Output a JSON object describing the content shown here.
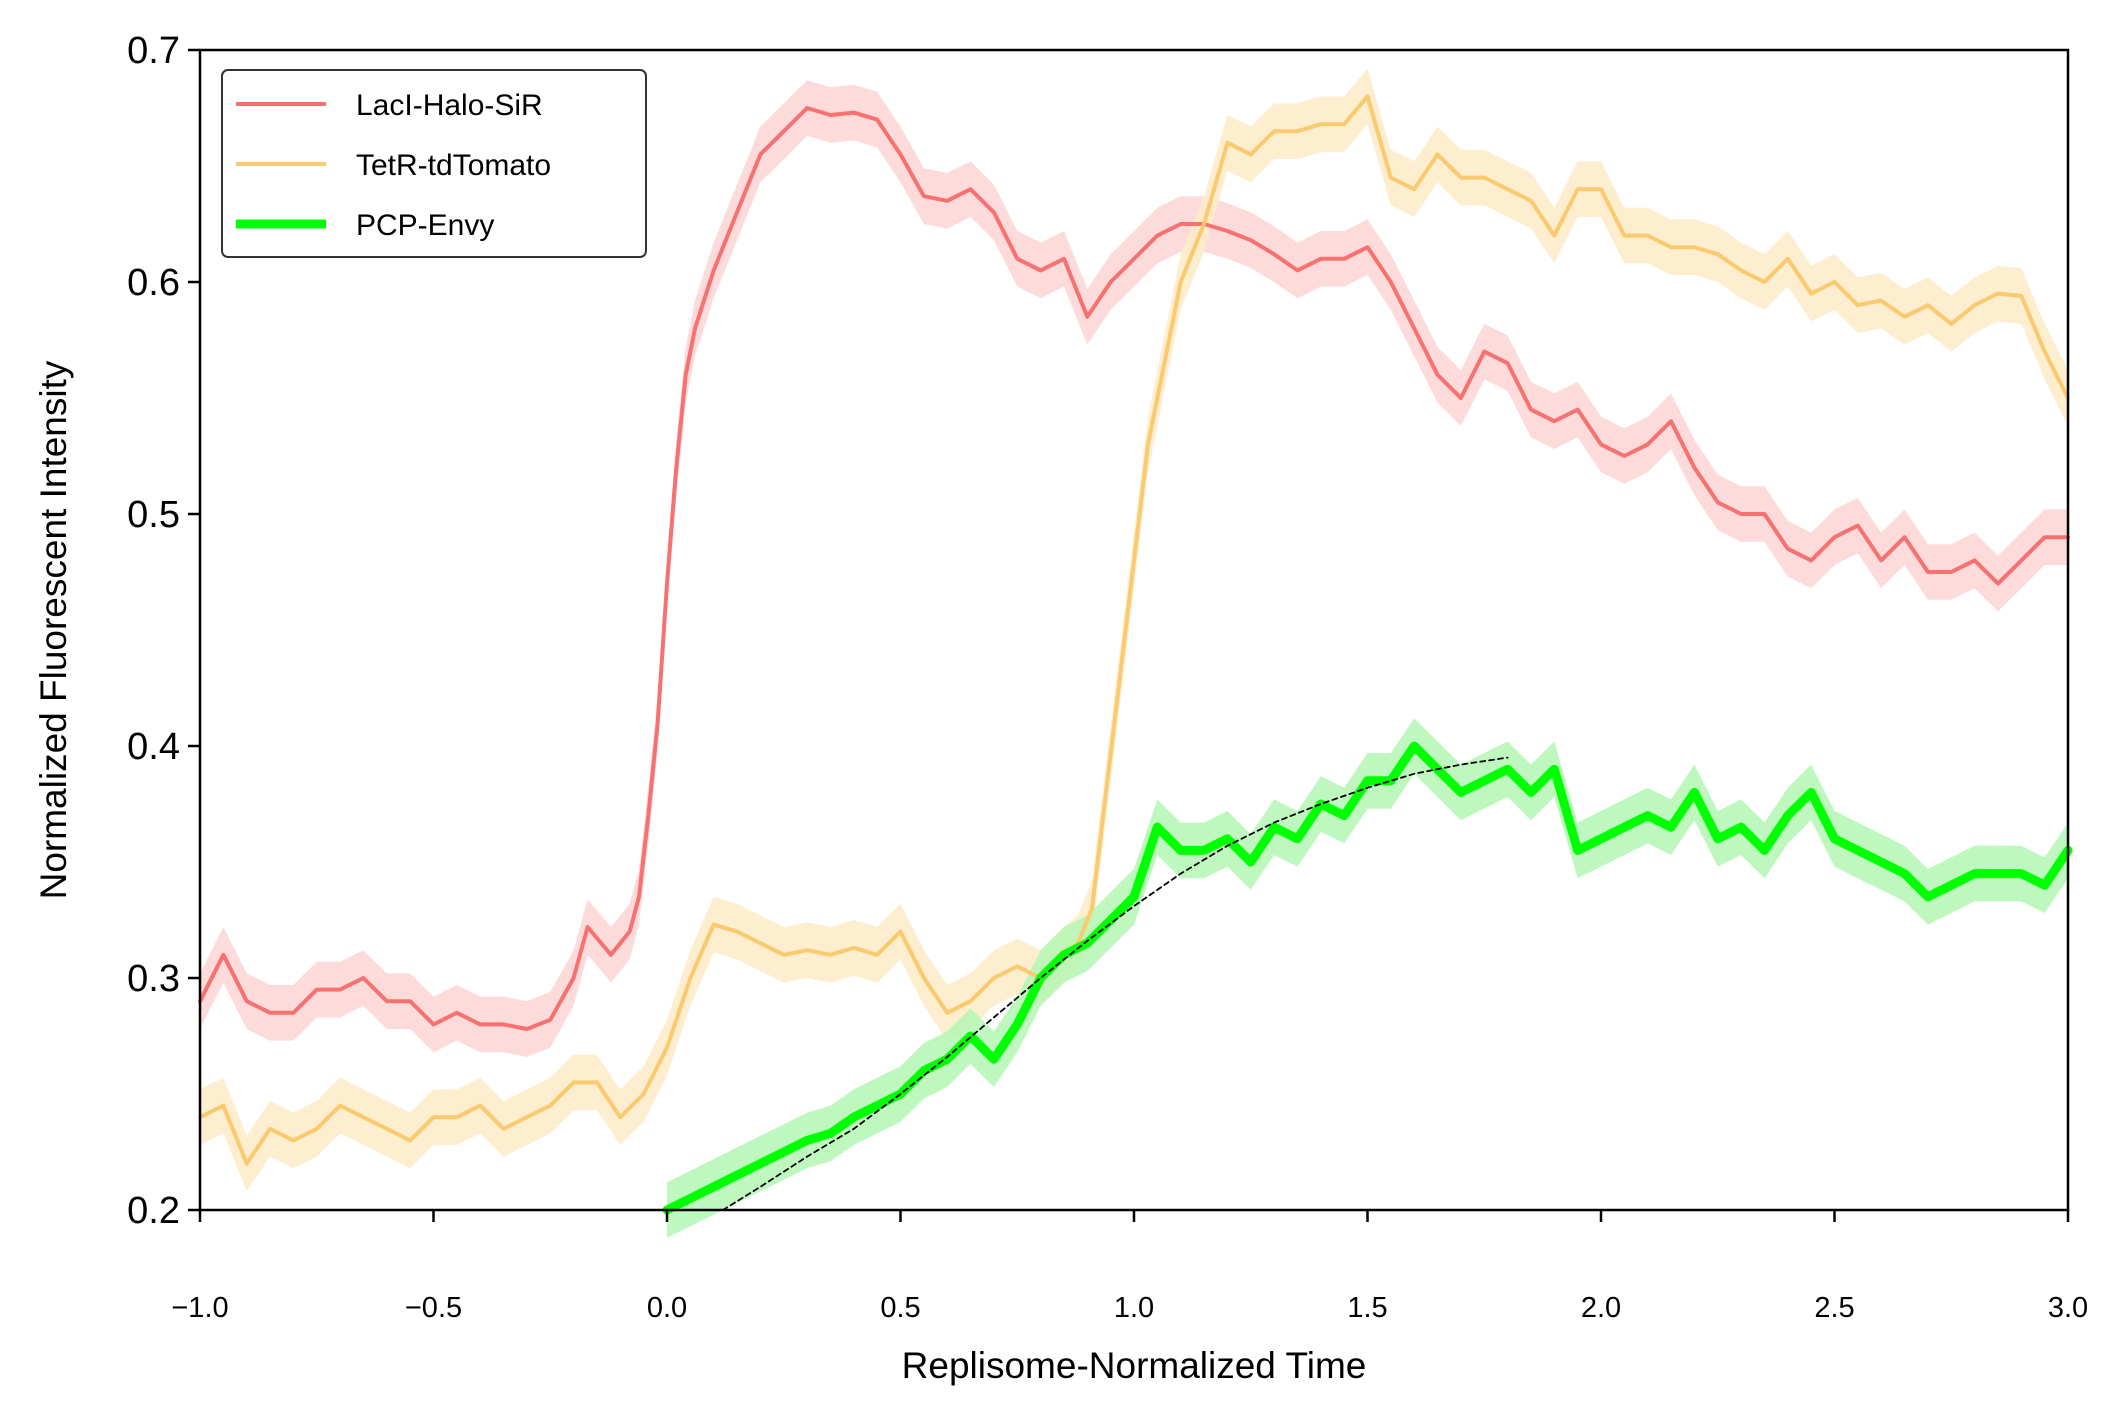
{
  "chart_data": {
    "type": "line",
    "xlabel": "Replisome-Normalized Time",
    "ylabel": "Normalized Fluorescent Intensity",
    "xlim": [
      -1.0,
      3.0
    ],
    "ylim": [
      0.2,
      0.7
    ],
    "x_ticks": [
      "−1.0",
      "−0.5",
      "0.0",
      "0.5",
      "1.0",
      "1.5",
      "2.0",
      "2.5",
      "3.0"
    ],
    "y_ticks": [
      "0.2",
      "0.3",
      "0.4",
      "0.5",
      "0.6",
      "0.7"
    ],
    "grid": false,
    "legend_position": "top-left",
    "series": [
      {
        "name": "LacI-Halo-SiR",
        "color": "#f87171",
        "band_color": "#fdd5d5",
        "x": [
          -1.0,
          -0.95,
          -0.9,
          -0.85,
          -0.8,
          -0.75,
          -0.7,
          -0.65,
          -0.6,
          -0.55,
          -0.5,
          -0.45,
          -0.4,
          -0.35,
          -0.3,
          -0.25,
          -0.2,
          -0.17,
          -0.12,
          -0.08,
          -0.06,
          -0.04,
          -0.02,
          0.0,
          0.02,
          0.04,
          0.06,
          0.1,
          0.15,
          0.2,
          0.25,
          0.3,
          0.35,
          0.4,
          0.45,
          0.5,
          0.55,
          0.6,
          0.65,
          0.7,
          0.75,
          0.8,
          0.85,
          0.9,
          0.95,
          1.0,
          1.05,
          1.1,
          1.15,
          1.2,
          1.25,
          1.3,
          1.35,
          1.4,
          1.45,
          1.5,
          1.55,
          1.6,
          1.65,
          1.7,
          1.75,
          1.8,
          1.85,
          1.9,
          1.95,
          2.0,
          2.05,
          2.1,
          2.15,
          2.2,
          2.25,
          2.3,
          2.35,
          2.4,
          2.45,
          2.5,
          2.55,
          2.6,
          2.65,
          2.7,
          2.75,
          2.8,
          2.85,
          2.9,
          2.95,
          3.0
        ],
        "values": [
          0.29,
          0.31,
          0.29,
          0.285,
          0.285,
          0.295,
          0.295,
          0.3,
          0.29,
          0.29,
          0.28,
          0.285,
          0.28,
          0.28,
          0.278,
          0.282,
          0.3,
          0.322,
          0.31,
          0.32,
          0.335,
          0.37,
          0.41,
          0.47,
          0.52,
          0.56,
          0.58,
          0.605,
          0.63,
          0.655,
          0.665,
          0.675,
          0.672,
          0.673,
          0.67,
          0.655,
          0.637,
          0.635,
          0.64,
          0.63,
          0.61,
          0.605,
          0.61,
          0.585,
          0.6,
          0.61,
          0.62,
          0.625,
          0.625,
          0.622,
          0.618,
          0.612,
          0.605,
          0.61,
          0.61,
          0.615,
          0.6,
          0.58,
          0.56,
          0.55,
          0.57,
          0.565,
          0.545,
          0.54,
          0.545,
          0.53,
          0.525,
          0.53,
          0.54,
          0.52,
          0.505,
          0.5,
          0.5,
          0.485,
          0.48,
          0.49,
          0.495,
          0.48,
          0.49,
          0.475,
          0.475,
          0.48,
          0.47,
          0.48,
          0.49,
          0.49
        ],
        "band_halfwidth": 0.012
      },
      {
        "name": "TetR-tdTomato",
        "color": "#fbc96e",
        "band_color": "#fdebc8",
        "x": [
          -1.0,
          -0.95,
          -0.9,
          -0.85,
          -0.8,
          -0.75,
          -0.7,
          -0.65,
          -0.6,
          -0.55,
          -0.5,
          -0.45,
          -0.4,
          -0.35,
          -0.3,
          -0.25,
          -0.2,
          -0.15,
          -0.1,
          -0.05,
          0.0,
          0.05,
          0.1,
          0.15,
          0.2,
          0.25,
          0.3,
          0.35,
          0.4,
          0.45,
          0.5,
          0.55,
          0.6,
          0.65,
          0.7,
          0.75,
          0.8,
          0.85,
          0.88,
          0.91,
          0.94,
          0.97,
          1.0,
          1.03,
          1.06,
          1.1,
          1.15,
          1.2,
          1.25,
          1.3,
          1.35,
          1.4,
          1.45,
          1.5,
          1.55,
          1.6,
          1.65,
          1.7,
          1.75,
          1.8,
          1.85,
          1.9,
          1.95,
          2.0,
          2.05,
          2.1,
          2.15,
          2.2,
          2.25,
          2.3,
          2.35,
          2.4,
          2.45,
          2.5,
          2.55,
          2.6,
          2.65,
          2.7,
          2.75,
          2.8,
          2.85,
          2.9,
          2.95,
          3.0
        ],
        "values": [
          0.24,
          0.245,
          0.22,
          0.235,
          0.23,
          0.235,
          0.245,
          0.24,
          0.235,
          0.23,
          0.24,
          0.24,
          0.245,
          0.235,
          0.24,
          0.245,
          0.255,
          0.255,
          0.24,
          0.25,
          0.27,
          0.3,
          0.323,
          0.32,
          0.315,
          0.31,
          0.312,
          0.31,
          0.313,
          0.31,
          0.32,
          0.3,
          0.285,
          0.29,
          0.3,
          0.305,
          0.3,
          0.31,
          0.315,
          0.33,
          0.38,
          0.43,
          0.48,
          0.53,
          0.56,
          0.6,
          0.625,
          0.66,
          0.655,
          0.665,
          0.665,
          0.668,
          0.668,
          0.68,
          0.645,
          0.64,
          0.655,
          0.645,
          0.645,
          0.64,
          0.635,
          0.62,
          0.64,
          0.64,
          0.62,
          0.62,
          0.615,
          0.615,
          0.612,
          0.605,
          0.6,
          0.61,
          0.595,
          0.6,
          0.59,
          0.592,
          0.585,
          0.59,
          0.582,
          0.59,
          0.595,
          0.594,
          0.57,
          0.55
        ],
        "band_halfwidth": 0.012
      },
      {
        "name": "PCP-Envy",
        "color": "#00ff00",
        "band_color": "#b4f7b4",
        "x": [
          0.0,
          0.05,
          0.1,
          0.15,
          0.2,
          0.25,
          0.3,
          0.35,
          0.4,
          0.45,
          0.5,
          0.55,
          0.6,
          0.65,
          0.7,
          0.75,
          0.8,
          0.85,
          0.9,
          0.95,
          1.0,
          1.05,
          1.1,
          1.15,
          1.2,
          1.25,
          1.3,
          1.35,
          1.4,
          1.45,
          1.5,
          1.55,
          1.6,
          1.65,
          1.7,
          1.75,
          1.8,
          1.85,
          1.9,
          1.95,
          2.0,
          2.05,
          2.1,
          2.15,
          2.2,
          2.25,
          2.3,
          2.35,
          2.4,
          2.45,
          2.5,
          2.55,
          2.6,
          2.65,
          2.7,
          2.75,
          2.8,
          2.85,
          2.9,
          2.95,
          3.0
        ],
        "values": [
          0.2,
          0.205,
          0.21,
          0.215,
          0.22,
          0.225,
          0.23,
          0.233,
          0.24,
          0.245,
          0.25,
          0.26,
          0.265,
          0.275,
          0.265,
          0.28,
          0.3,
          0.31,
          0.315,
          0.325,
          0.335,
          0.365,
          0.355,
          0.355,
          0.36,
          0.35,
          0.365,
          0.36,
          0.375,
          0.37,
          0.385,
          0.385,
          0.4,
          0.39,
          0.38,
          0.385,
          0.39,
          0.38,
          0.39,
          0.355,
          0.36,
          0.365,
          0.37,
          0.365,
          0.38,
          0.36,
          0.365,
          0.355,
          0.37,
          0.38,
          0.36,
          0.355,
          0.35,
          0.345,
          0.335,
          0.34,
          0.345,
          0.345,
          0.345,
          0.34,
          0.355
        ],
        "band_halfwidth": 0.012
      },
      {
        "name": "",
        "style": "dashed",
        "color": "#000000",
        "x": [
          0.12,
          0.2,
          0.3,
          0.4,
          0.5,
          0.6,
          0.7,
          0.8,
          0.9,
          1.0,
          1.1,
          1.2,
          1.3,
          1.4,
          1.5,
          1.6,
          1.7,
          1.8
        ],
        "values": [
          0.2,
          0.21,
          0.223,
          0.235,
          0.25,
          0.266,
          0.283,
          0.3,
          0.316,
          0.331,
          0.345,
          0.357,
          0.367,
          0.375,
          0.382,
          0.388,
          0.392,
          0.395
        ]
      }
    ]
  }
}
